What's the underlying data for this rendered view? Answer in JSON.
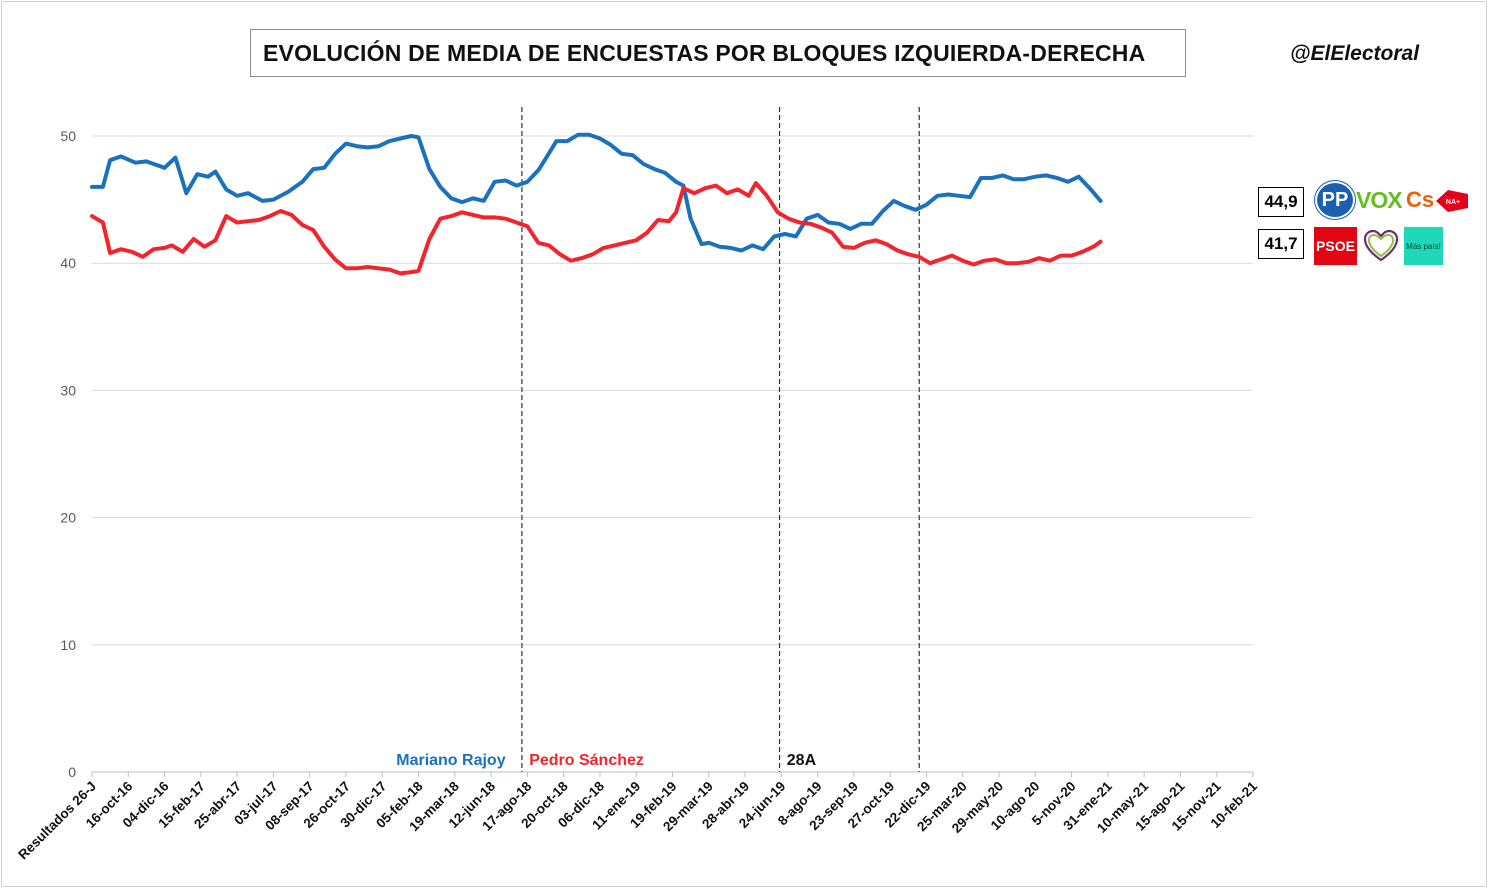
{
  "title": "EVOLUCIÓN DE MEDIA DE ENCUESTAS POR BLOQUES IZQUIERDA-DERECHA",
  "handle": "@ElElectoral",
  "right_value": "44,9",
  "left_value": "41,7",
  "logos": {
    "pp": "PP",
    "vox": "VOX",
    "cs": "Cs",
    "na": "NA+",
    "psoe": "PSOE",
    "podemos": "podemos-heart-icon",
    "maspais": "Más país!"
  },
  "colors": {
    "right_bloc": "#1a72bf",
    "left_bloc": "#f2242c",
    "grid": "#d9d9d9"
  },
  "chart_data": {
    "type": "line",
    "title": "EVOLUCIÓN DE MEDIA DE ENCUESTAS POR BLOQUES IZQUIERDA-DERECHA",
    "xlabel": "",
    "ylabel": "",
    "ylim": [
      0,
      50
    ],
    "yticks": [
      "0",
      "10",
      "20",
      "30",
      "40",
      "50"
    ],
    "grid": true,
    "legend": "none",
    "x_tick_labels": [
      "Resultados 26-J",
      "16-oct-16",
      "04-dic-16",
      "15-feb-17",
      "25-abr-17",
      "03-jul-17",
      "08-sep-17",
      "26-oct-17",
      "30-dic-17",
      "05-feb-18",
      "19-mar-18",
      "12-jun-18",
      "17-ago-18",
      "20-oct-18",
      "06-dic-18",
      "11-ene-19",
      "19-feb-19",
      "29-mar-19",
      "28-abr-19",
      "24-jun-19",
      "8-ago-19",
      "23-sep-19",
      "27-oct-19",
      "22-dic-19",
      "25-mar-20",
      "29-may-20",
      "10-ago 20",
      "5-nov-20",
      "31-ene-21",
      "10-may-21",
      "15-ago-21",
      "15-nov-21",
      "10-feb-21"
    ],
    "period_dividers": [
      11.85,
      18.95,
      22.8
    ],
    "period_labels": [
      {
        "text": "Mariano Rajoy",
        "color": "#1a72bf",
        "anchor": "end",
        "x": 11.4
      },
      {
        "text": "Pedro Sánchez",
        "color": "#f2242c",
        "anchor": "start",
        "x": 12.05
      },
      {
        "text": "28A",
        "color": "#111111",
        "anchor": "start",
        "x": 19.15
      }
    ],
    "series": [
      {
        "key": "right_bloc",
        "values": [
          [
            0,
            46
          ],
          [
            0.3,
            46
          ],
          [
            0.5,
            48.1
          ],
          [
            0.8,
            48.4
          ],
          [
            1.2,
            47.9
          ],
          [
            1.5,
            48
          ],
          [
            1.8,
            47.7
          ],
          [
            2,
            47.5
          ],
          [
            2.3,
            48.3
          ],
          [
            2.6,
            45.5
          ],
          [
            2.9,
            47
          ],
          [
            3.2,
            46.8
          ],
          [
            3.4,
            47.2
          ],
          [
            3.7,
            45.8
          ],
          [
            4,
            45.3
          ],
          [
            4.3,
            45.5
          ],
          [
            4.7,
            44.9
          ],
          [
            5,
            45
          ],
          [
            5.4,
            45.6
          ],
          [
            5.8,
            46.4
          ],
          [
            6.1,
            47.4
          ],
          [
            6.4,
            47.5
          ],
          [
            6.7,
            48.6
          ],
          [
            7,
            49.4
          ],
          [
            7.3,
            49.2
          ],
          [
            7.6,
            49.1
          ],
          [
            7.9,
            49.2
          ],
          [
            8.2,
            49.6
          ],
          [
            8.5,
            49.8
          ],
          [
            8.8,
            50
          ],
          [
            9,
            49.9
          ],
          [
            9.3,
            47.4
          ],
          [
            9.6,
            46
          ],
          [
            9.9,
            45.1
          ],
          [
            10.2,
            44.8
          ],
          [
            10.5,
            45.1
          ],
          [
            10.8,
            44.9
          ],
          [
            11.1,
            46.4
          ],
          [
            11.4,
            46.5
          ],
          [
            11.7,
            46.1
          ],
          [
            12,
            46.4
          ],
          [
            12.3,
            47.3
          ],
          [
            12.5,
            48.2
          ],
          [
            12.8,
            49.6
          ],
          [
            13.1,
            49.6
          ],
          [
            13.4,
            50.1
          ],
          [
            13.7,
            50.1
          ],
          [
            14,
            49.8
          ],
          [
            14.3,
            49.3
          ],
          [
            14.6,
            48.6
          ],
          [
            14.9,
            48.5
          ],
          [
            15.2,
            47.8
          ],
          [
            15.5,
            47.4
          ],
          [
            15.8,
            47.1
          ],
          [
            16.1,
            46.4
          ],
          [
            16.3,
            46.1
          ],
          [
            16.5,
            43.5
          ],
          [
            16.8,
            41.5
          ],
          [
            17,
            41.6
          ],
          [
            17.3,
            41.3
          ],
          [
            17.6,
            41.2
          ],
          [
            17.9,
            41
          ],
          [
            18.2,
            41.4
          ],
          [
            18.5,
            41.1
          ],
          [
            18.8,
            42.1
          ],
          [
            19.1,
            42.3
          ],
          [
            19.4,
            42.1
          ],
          [
            19.7,
            43.5
          ],
          [
            20,
            43.8
          ],
          [
            20.3,
            43.2
          ],
          [
            20.6,
            43.1
          ],
          [
            20.9,
            42.7
          ],
          [
            21.2,
            43.1
          ],
          [
            21.5,
            43.1
          ],
          [
            21.8,
            44.1
          ],
          [
            22.1,
            44.9
          ],
          [
            22.4,
            44.5
          ],
          [
            22.7,
            44.2
          ],
          [
            23,
            44.6
          ],
          [
            23.3,
            45.3
          ],
          [
            23.6,
            45.4
          ],
          [
            23.9,
            45.3
          ],
          [
            24.2,
            45.2
          ],
          [
            24.5,
            46.7
          ],
          [
            24.8,
            46.7
          ],
          [
            25.1,
            46.9
          ],
          [
            25.4,
            46.6
          ],
          [
            25.7,
            46.6
          ],
          [
            26,
            46.8
          ],
          [
            26.3,
            46.9
          ],
          [
            26.6,
            46.7
          ],
          [
            26.9,
            46.4
          ],
          [
            27.2,
            46.8
          ],
          [
            27.5,
            45.9
          ],
          [
            27.8,
            44.9
          ]
        ]
      },
      {
        "key": "left_bloc",
        "values": [
          [
            0,
            43.7
          ],
          [
            0.3,
            43.2
          ],
          [
            0.5,
            40.8
          ],
          [
            0.8,
            41.1
          ],
          [
            1.1,
            40.9
          ],
          [
            1.4,
            40.5
          ],
          [
            1.7,
            41.1
          ],
          [
            2,
            41.2
          ],
          [
            2.2,
            41.4
          ],
          [
            2.5,
            40.9
          ],
          [
            2.8,
            41.9
          ],
          [
            3.1,
            41.3
          ],
          [
            3.4,
            41.8
          ],
          [
            3.7,
            43.7
          ],
          [
            4,
            43.2
          ],
          [
            4.3,
            43.3
          ],
          [
            4.6,
            43.4
          ],
          [
            4.9,
            43.7
          ],
          [
            5.2,
            44.1
          ],
          [
            5.5,
            43.8
          ],
          [
            5.8,
            43
          ],
          [
            6.1,
            42.6
          ],
          [
            6.4,
            41.3
          ],
          [
            6.7,
            40.3
          ],
          [
            7,
            39.6
          ],
          [
            7.3,
            39.6
          ],
          [
            7.6,
            39.7
          ],
          [
            7.9,
            39.6
          ],
          [
            8.2,
            39.5
          ],
          [
            8.5,
            39.2
          ],
          [
            8.8,
            39.3
          ],
          [
            9,
            39.4
          ],
          [
            9.3,
            41.9
          ],
          [
            9.6,
            43.5
          ],
          [
            9.9,
            43.7
          ],
          [
            10.2,
            44
          ],
          [
            10.5,
            43.8
          ],
          [
            10.8,
            43.6
          ],
          [
            11.1,
            43.6
          ],
          [
            11.4,
            43.5
          ],
          [
            11.7,
            43.2
          ],
          [
            12,
            42.9
          ],
          [
            12.3,
            41.6
          ],
          [
            12.6,
            41.4
          ],
          [
            12.9,
            40.7
          ],
          [
            13.2,
            40.2
          ],
          [
            13.5,
            40.4
          ],
          [
            13.8,
            40.7
          ],
          [
            14.1,
            41.2
          ],
          [
            14.4,
            41.4
          ],
          [
            14.7,
            41.6
          ],
          [
            15,
            41.8
          ],
          [
            15.3,
            42.4
          ],
          [
            15.6,
            43.4
          ],
          [
            15.9,
            43.3
          ],
          [
            16.1,
            44
          ],
          [
            16.3,
            45.9
          ],
          [
            16.6,
            45.5
          ],
          [
            16.9,
            45.9
          ],
          [
            17.2,
            46.1
          ],
          [
            17.5,
            45.5
          ],
          [
            17.8,
            45.8
          ],
          [
            18.1,
            45.3
          ],
          [
            18.3,
            46.3
          ],
          [
            18.6,
            45.3
          ],
          [
            18.9,
            44
          ],
          [
            19.2,
            43.5
          ],
          [
            19.5,
            43.2
          ],
          [
            19.8,
            43.1
          ],
          [
            20.1,
            42.8
          ],
          [
            20.4,
            42.4
          ],
          [
            20.7,
            41.3
          ],
          [
            21,
            41.2
          ],
          [
            21.3,
            41.6
          ],
          [
            21.6,
            41.8
          ],
          [
            21.9,
            41.5
          ],
          [
            22.2,
            41
          ],
          [
            22.5,
            40.7
          ],
          [
            22.8,
            40.5
          ],
          [
            23.1,
            40
          ],
          [
            23.4,
            40.3
          ],
          [
            23.7,
            40.6
          ],
          [
            24,
            40.2
          ],
          [
            24.3,
            39.9
          ],
          [
            24.6,
            40.2
          ],
          [
            24.9,
            40.3
          ],
          [
            25.2,
            40
          ],
          [
            25.5,
            40
          ],
          [
            25.8,
            40.1
          ],
          [
            26.1,
            40.4
          ],
          [
            26.4,
            40.2
          ],
          [
            26.7,
            40.6
          ],
          [
            27,
            40.6
          ],
          [
            27.3,
            40.9
          ],
          [
            27.6,
            41.3
          ],
          [
            27.8,
            41.7
          ]
        ]
      }
    ]
  }
}
